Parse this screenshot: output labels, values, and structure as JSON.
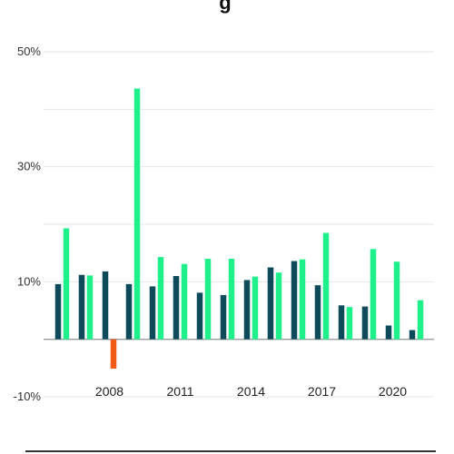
{
  "chart_data": {
    "type": "bar",
    "title": "",
    "title_visible_fragment": "g",
    "xlabel": "",
    "ylabel": "",
    "ylim": [
      -10,
      50
    ],
    "y_ticks": [
      {
        "value": 50,
        "label": "50%"
      },
      {
        "value": 30,
        "label": "30%"
      },
      {
        "value": 10,
        "label": "10%"
      },
      {
        "value": -10,
        "label": "-10%"
      }
    ],
    "grid": true,
    "legend": "none",
    "categories": [
      "2006",
      "2007",
      "2008",
      "2009",
      "2010",
      "2011",
      "2012",
      "2013",
      "2014",
      "2015",
      "2016",
      "2017",
      "2018",
      "2019",
      "2020",
      "2021"
    ],
    "x_tick_labels": [
      {
        "category": "2008",
        "label": "2008"
      },
      {
        "category": "2011",
        "label": "2011"
      },
      {
        "category": "2014",
        "label": "2014"
      },
      {
        "category": "2017",
        "label": "2017"
      },
      {
        "category": "2020",
        "label": "2020"
      }
    ],
    "series": [
      {
        "color": "#0d4b5a",
        "values": [
          9.6,
          11.2,
          11.8,
          9.6,
          9.2,
          11.0,
          8.1,
          7.7,
          10.3,
          12.5,
          13.6,
          9.4,
          5.9,
          5.7,
          2.4,
          1.6
        ]
      },
      {
        "color": "#1ef08c",
        "negative_color": "#f05a16",
        "values": [
          19.3,
          11.1,
          -5.1,
          43.6,
          14.3,
          13.1,
          14.0,
          14.0,
          10.9,
          11.6,
          13.9,
          18.5,
          5.6,
          15.7,
          13.5,
          6.8
        ]
      }
    ]
  }
}
